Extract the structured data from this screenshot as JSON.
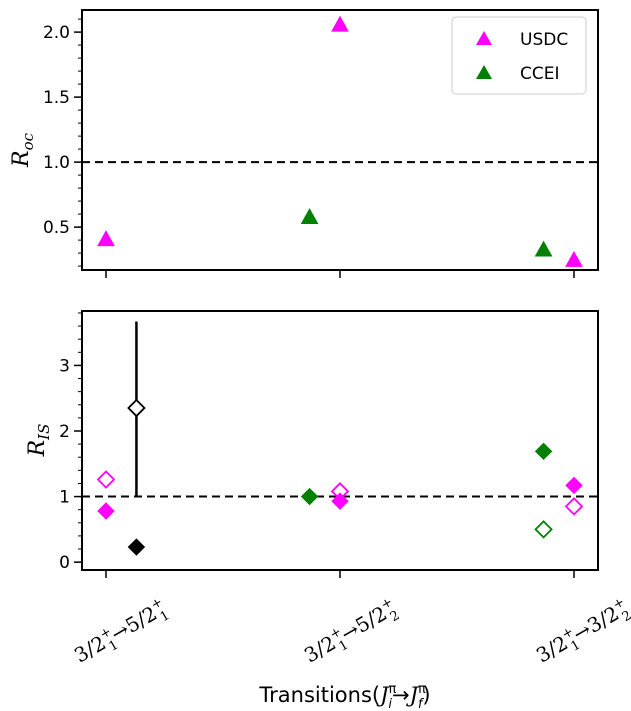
{
  "chart_data": [
    {
      "type": "scatter",
      "panel": "top",
      "categories": [
        "3/2_1^+ → 5/2_1^+",
        "3/2_1^+ → 5/2_2^+",
        "3/2_1^+ → 3/2_2^+"
      ],
      "ylabel": "R_oc",
      "ylim": [
        0.17,
        2.17
      ],
      "yticks": [
        0.5,
        1.0,
        1.5,
        2.0
      ],
      "ytick_labels": [
        "0.5",
        "1.0",
        "1.5",
        "2.0"
      ],
      "reference_line": 1.0,
      "legend": {
        "placement": "top-right",
        "entries": [
          "USDC",
          "CCEI"
        ]
      },
      "series": [
        {
          "name": "USDC",
          "marker": "triangle",
          "color": "#ff00ff",
          "filled": true,
          "points": [
            {
              "x": 0,
              "y": 0.41
            },
            {
              "x": 1,
              "y": 2.06
            },
            {
              "x": 2,
              "y": 0.25
            }
          ]
        },
        {
          "name": "CCEI",
          "marker": "triangle",
          "color": "#008000",
          "filled": true,
          "points": [
            {
              "x": 0.87,
              "y": 0.58
            },
            {
              "x": 1.87,
              "y": 0.33
            }
          ]
        }
      ]
    },
    {
      "type": "scatter",
      "panel": "bottom",
      "categories": [
        "3/2_1^+ → 5/2_1^+",
        "3/2_1^+ → 5/2_2^+",
        "3/2_1^+ → 3/2_2^+"
      ],
      "xlabel": "Transitions(J_i^π → J_f^π)",
      "ylabel": "R_IS",
      "ylim": [
        -0.12,
        3.83
      ],
      "yticks": [
        0,
        1,
        2,
        3
      ],
      "ytick_labels": [
        "0",
        "1",
        "2",
        "3"
      ],
      "reference_line": 1.0,
      "series": [
        {
          "marker": "diamond",
          "color": "#ff00ff",
          "filled": true,
          "points": [
            {
              "x": 0,
              "y": 0.78
            },
            {
              "x": 1,
              "y": 0.93
            },
            {
              "x": 2,
              "y": 1.17
            }
          ]
        },
        {
          "marker": "diamond",
          "color": "#ff00ff",
          "filled": false,
          "points": [
            {
              "x": 0,
              "y": 1.26
            },
            {
              "x": 1,
              "y": 1.08
            },
            {
              "x": 2,
              "y": 0.85
            }
          ]
        },
        {
          "marker": "diamond",
          "color": "#008000",
          "filled": true,
          "points": [
            {
              "x": 0.87,
              "y": 1.0
            },
            {
              "x": 1.87,
              "y": 1.69
            }
          ]
        },
        {
          "marker": "diamond",
          "color": "#008000",
          "filled": false,
          "points": [
            {
              "x": 1.87,
              "y": 0.5
            }
          ]
        },
        {
          "marker": "diamond",
          "color": "#000000",
          "filled": true,
          "points": [
            {
              "x": 0.13,
              "y": 0.23
            }
          ]
        },
        {
          "marker": "diamond",
          "color": "#000000",
          "filled": false,
          "points": [
            {
              "x": 0.13,
              "y": 2.35,
              "err_low": 1.35,
              "err_high": 1.32
            }
          ]
        }
      ]
    }
  ],
  "legend": {
    "usdc": "USDC",
    "ccei": "CCEI"
  },
  "top_ylabel": {
    "main": "R",
    "sub": "oc"
  },
  "bottom_ylabel": {
    "main": "R",
    "sub": "IS"
  },
  "xlabel": {
    "prefix": "Transitions(",
    "j": "J",
    "i": "i",
    "f": "f",
    "pi": "π",
    "arrow": "→",
    "suffix": ")"
  },
  "categories": [
    {
      "ji": "3/2",
      "ji_sub": "1",
      "jf": "5/2",
      "jf_sub": "1",
      "sup": "+",
      "arrow": "→"
    },
    {
      "ji": "3/2",
      "ji_sub": "1",
      "jf": "5/2",
      "jf_sub": "2",
      "sup": "+",
      "arrow": "→"
    },
    {
      "ji": "3/2",
      "ji_sub": "1",
      "jf": "3/2",
      "jf_sub": "2",
      "sup": "+",
      "arrow": "→"
    }
  ],
  "colors": {
    "usdc": "#ff00ff",
    "ccei": "#008000",
    "black": "#000000"
  }
}
